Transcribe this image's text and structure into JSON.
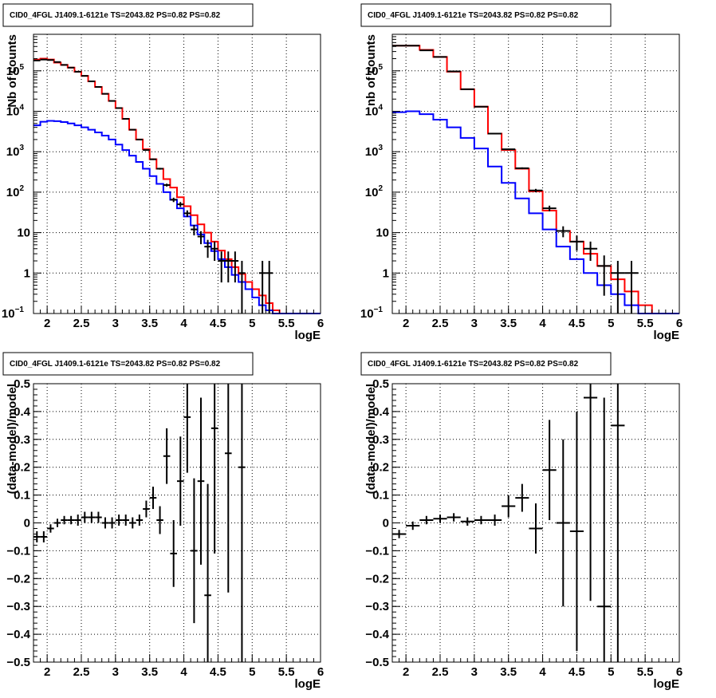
{
  "colors": {
    "model": "#ff0000",
    "component": "#0000ff",
    "data": "#000000",
    "grid": "#000000",
    "background": "#ffffff"
  },
  "chart_data": [
    {
      "type": "line",
      "title": "CID0_4FGL J1409.1-6121e TS=2043.82 PS=0.82 PS=0.82",
      "xlabel": "logE",
      "ylabel": "Nb of counts",
      "xlim": [
        1.8,
        6.0
      ],
      "ylim": [
        0.1,
        800000
      ],
      "yscale": "log",
      "grid": true,
      "x_ticks": [
        "2",
        "2.5",
        "3",
        "3.5",
        "4",
        "4.5",
        "5",
        "5.5",
        "6"
      ],
      "y_ticks": [
        {
          "base": "10",
          "exp": "−1"
        },
        {
          "base": "1",
          "exp": ""
        },
        {
          "base": "10",
          "exp": ""
        },
        {
          "base": "10",
          "exp": "2"
        },
        {
          "base": "10",
          "exp": "3"
        },
        {
          "base": "10",
          "exp": "4"
        },
        {
          "base": "10",
          "exp": "5"
        }
      ],
      "bin_edges": [
        1.8,
        1.9,
        2.0,
        2.1,
        2.2,
        2.3,
        2.4,
        2.5,
        2.6,
        2.7,
        2.8,
        2.9,
        3.0,
        3.1,
        3.2,
        3.3,
        3.4,
        3.5,
        3.6,
        3.7,
        3.8,
        3.9,
        4.0,
        4.1,
        4.2,
        4.3,
        4.4,
        4.5,
        4.6,
        4.7,
        4.8,
        4.9,
        5.0,
        5.1,
        5.2,
        5.3,
        5.4,
        5.5,
        5.6,
        5.7,
        5.8,
        5.9,
        6.0
      ],
      "series": [
        {
          "role": "model",
          "values": [
            190000,
            200000,
            190000,
            160000,
            140000,
            120000,
            95000,
            75000,
            55000,
            40000,
            27000,
            18000,
            12000,
            6500,
            3500,
            2000,
            1150,
            650,
            380,
            210,
            130,
            75,
            45,
            27,
            16,
            10,
            6.0,
            3.6,
            2.2,
            1.4,
            0.95,
            0.6,
            0.4,
            0.28,
            0.18,
            0.12,
            0.1,
            0.1,
            0.1,
            0.1,
            0.1,
            0.1
          ]
        },
        {
          "role": "component",
          "values": [
            4500,
            5500,
            5800,
            5700,
            5400,
            5000,
            4500,
            4000,
            3500,
            3000,
            2500,
            2000,
            1500,
            1100,
            800,
            560,
            380,
            250,
            160,
            100,
            65,
            40,
            25,
            15,
            9.0,
            5.5,
            3.5,
            2.2,
            1.4,
            0.9,
            0.6,
            0.4,
            0.25,
            0.16,
            0.12,
            0.1,
            0.1,
            0.1,
            0.1,
            0.1,
            0.1,
            0.1
          ]
        },
        {
          "role": "data",
          "points": [
            [
              1.85,
              180000
            ],
            [
              1.95,
              190000
            ],
            [
              2.05,
              185000
            ],
            [
              2.15,
              165000
            ],
            [
              2.25,
              140000
            ],
            [
              2.35,
              120000
            ],
            [
              2.45,
              95000
            ],
            [
              2.55,
              75000
            ],
            [
              2.65,
              55000
            ],
            [
              2.75,
              40000
            ],
            [
              2.85,
              27000
            ],
            [
              2.95,
              18000
            ],
            [
              3.05,
              12000
            ],
            [
              3.15,
              6500
            ],
            [
              3.25,
              3500
            ],
            [
              3.35,
              2000
            ],
            [
              3.45,
              1100
            ],
            [
              3.55,
              650
            ],
            [
              3.65,
              380
            ],
            [
              3.75,
              150
            ],
            [
              3.85,
              65
            ],
            [
              3.95,
              50
            ],
            [
              4.05,
              30
            ],
            [
              4.15,
              12
            ],
            [
              4.25,
              8
            ],
            [
              4.35,
              4.5
            ],
            [
              4.45,
              4.0
            ],
            [
              4.55,
              2.0
            ],
            [
              4.65,
              2.0
            ],
            [
              4.75,
              2.0
            ],
            [
              4.85,
              1.0
            ],
            [
              5.15,
              1.0
            ],
            [
              5.25,
              1.0
            ]
          ]
        }
      ]
    },
    {
      "type": "line",
      "title": "CID0_4FGL J1409.1-6121e TS=2043.82 PS=0.82 PS=0.82",
      "xlabel": "logE",
      "ylabel": "nb of counts",
      "xlim": [
        1.8,
        6.0
      ],
      "ylim": [
        0.1,
        800000
      ],
      "yscale": "log",
      "grid": true,
      "x_ticks": [
        "2",
        "2.5",
        "3",
        "3.5",
        "4",
        "4.5",
        "5",
        "5.5",
        "6"
      ],
      "y_ticks": [
        {
          "base": "10",
          "exp": "−1"
        },
        {
          "base": "1",
          "exp": ""
        },
        {
          "base": "10",
          "exp": ""
        },
        {
          "base": "10",
          "exp": "2"
        },
        {
          "base": "10",
          "exp": "3"
        },
        {
          "base": "10",
          "exp": "4"
        },
        {
          "base": "10",
          "exp": "5"
        }
      ],
      "bin_edges": [
        1.8,
        2.0,
        2.2,
        2.4,
        2.6,
        2.8,
        3.0,
        3.2,
        3.4,
        3.6,
        3.8,
        4.0,
        4.2,
        4.4,
        4.6,
        4.8,
        5.0,
        5.2,
        5.4,
        5.6,
        5.8,
        6.0
      ],
      "series": [
        {
          "role": "model",
          "values": [
            420000,
            420000,
            330000,
            220000,
            95000,
            35000,
            13000,
            2800,
            1100,
            380,
            105,
            35,
            11,
            6,
            3,
            1.5,
            0.7,
            0.35,
            0.16,
            0.1,
            0.1
          ]
        },
        {
          "role": "component",
          "values": [
            9500,
            10000,
            8500,
            6200,
            4000,
            2200,
            1200,
            430,
            170,
            70,
            30,
            12,
            4.5,
            2.2,
            1.0,
            0.5,
            0.3,
            0.16,
            0.1,
            0.1,
            0.1
          ]
        },
        {
          "role": "data",
          "points": [
            [
              1.9,
              420000
            ],
            [
              2.1,
              420000
            ],
            [
              2.3,
              320000
            ],
            [
              2.5,
              220000
            ],
            [
              2.7,
              97000
            ],
            [
              2.9,
              35000
            ],
            [
              3.1,
              13000
            ],
            [
              3.3,
              2800
            ],
            [
              3.5,
              1150
            ],
            [
              3.7,
              390
            ],
            [
              3.9,
              110
            ],
            [
              4.1,
              40
            ],
            [
              4.3,
              11
            ],
            [
              4.5,
              6
            ],
            [
              4.7,
              4
            ],
            [
              4.9,
              1.5
            ],
            [
              5.1,
              1.0
            ],
            [
              5.3,
              1.0
            ]
          ]
        }
      ]
    },
    {
      "type": "scatter",
      "title": "CID0_4FGL J1409.1-6121e TS=2043.82 PS=0.82 PS=0.82",
      "xlabel": "logE",
      "ylabel": "(data-model)/model",
      "xlim": [
        1.8,
        6.0
      ],
      "ylim": [
        -0.5,
        0.5
      ],
      "grid": true,
      "x_ticks": [
        "2",
        "2.5",
        "3",
        "3.5",
        "4",
        "4.5",
        "5",
        "5.5",
        "6"
      ],
      "y_ticks": [
        "−0.5",
        "−0.4",
        "−0.3",
        "−0.2",
        "−0.1",
        "0",
        "0.1",
        "0.2",
        "0.3",
        "0.4",
        "0.5"
      ],
      "points": [
        [
          1.85,
          -0.05,
          0.02
        ],
        [
          1.95,
          -0.05,
          0.02
        ],
        [
          2.05,
          -0.02,
          0.015
        ],
        [
          2.15,
          0.0,
          0.015
        ],
        [
          2.25,
          0.01,
          0.015
        ],
        [
          2.35,
          0.01,
          0.015
        ],
        [
          2.45,
          0.01,
          0.02
        ],
        [
          2.55,
          0.02,
          0.02
        ],
        [
          2.65,
          0.02,
          0.02
        ],
        [
          2.75,
          0.02,
          0.02
        ],
        [
          2.85,
          0.0,
          0.02
        ],
        [
          2.95,
          0.0,
          0.02
        ],
        [
          3.05,
          0.01,
          0.02
        ],
        [
          3.15,
          0.01,
          0.02
        ],
        [
          3.25,
          0.0,
          0.02
        ],
        [
          3.35,
          0.01,
          0.02
        ],
        [
          3.45,
          0.05,
          0.03
        ],
        [
          3.55,
          0.09,
          0.04
        ],
        [
          3.65,
          0.01,
          0.05
        ],
        [
          3.75,
          0.24,
          0.1
        ],
        [
          3.85,
          -0.11,
          0.12
        ],
        [
          3.95,
          0.15,
          0.16
        ],
        [
          4.05,
          0.38,
          0.2
        ],
        [
          4.15,
          -0.1,
          0.26
        ],
        [
          4.25,
          0.15,
          0.3
        ],
        [
          4.35,
          -0.26,
          0.4
        ],
        [
          4.45,
          0.34,
          0.45
        ],
        [
          4.65,
          0.25,
          0.5
        ],
        [
          4.85,
          0.2,
          0.7
        ]
      ]
    },
    {
      "type": "scatter",
      "title": "CID0_4FGL J1409.1-6121e TS=2043.82 PS=0.82 PS=0.82",
      "xlabel": "logE",
      "ylabel": "(data-model)/model",
      "xlim": [
        1.8,
        6.0
      ],
      "ylim": [
        -0.5,
        0.5
      ],
      "grid": true,
      "x_ticks": [
        "2",
        "2.5",
        "3",
        "3.5",
        "4",
        "4.5",
        "5",
        "5.5",
        "6"
      ],
      "y_ticks": [
        "−0.5",
        "−0.4",
        "−0.3",
        "−0.2",
        "−0.1",
        "0",
        "0.1",
        "0.2",
        "0.3",
        "0.4",
        "0.5"
      ],
      "points": [
        [
          1.9,
          -0.04,
          0.015
        ],
        [
          2.1,
          -0.01,
          0.015
        ],
        [
          2.3,
          0.01,
          0.015
        ],
        [
          2.5,
          0.015,
          0.015
        ],
        [
          2.7,
          0.02,
          0.015
        ],
        [
          2.9,
          0.005,
          0.015
        ],
        [
          3.1,
          0.01,
          0.015
        ],
        [
          3.3,
          0.01,
          0.02
        ],
        [
          3.5,
          0.06,
          0.04
        ],
        [
          3.7,
          0.09,
          0.05
        ],
        [
          3.9,
          -0.02,
          0.09
        ],
        [
          4.1,
          0.19,
          0.18
        ],
        [
          4.3,
          0.0,
          0.3
        ],
        [
          4.5,
          -0.03,
          0.43
        ],
        [
          4.7,
          0.45,
          0.73
        ],
        [
          4.9,
          -0.3,
          0.75
        ],
        [
          5.1,
          0.35,
          1.5
        ]
      ]
    }
  ]
}
